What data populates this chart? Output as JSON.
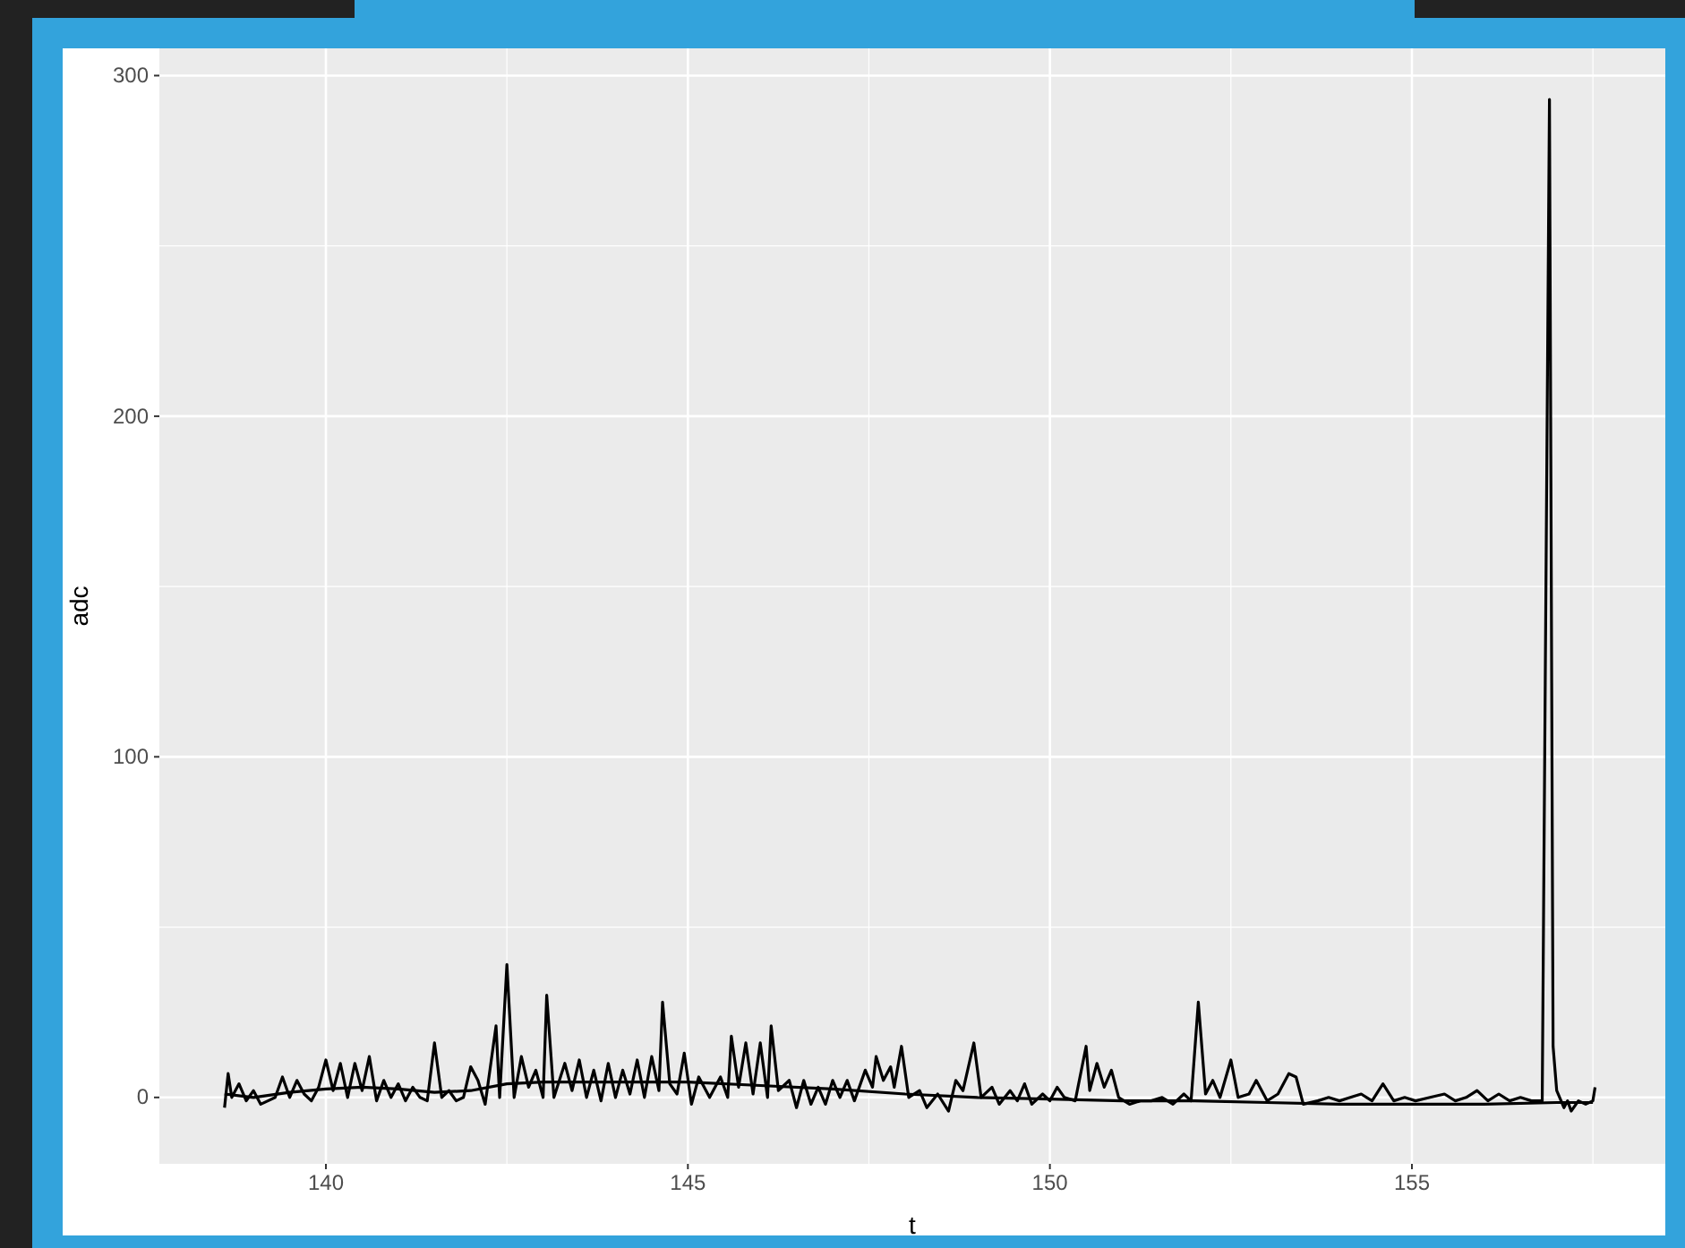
{
  "chart_data": {
    "type": "line",
    "xlabel": "t",
    "ylabel": "adc",
    "xlim": [
      137.7,
      158.5
    ],
    "ylim": [
      -19.5,
      308
    ],
    "xticks": [
      140,
      145,
      150,
      155
    ],
    "yticks": [
      0,
      100,
      200,
      300
    ],
    "grid": true,
    "line_style": "solid",
    "marker": "none",
    "series": [
      {
        "color": "#000000",
        "x": [
          138.6,
          138.65,
          138.7,
          138.8,
          138.9,
          139.0,
          139.1,
          139.2,
          139.3,
          139.4,
          139.5,
          139.6,
          139.7,
          139.8,
          139.9,
          140.0,
          140.1,
          140.2,
          140.3,
          140.4,
          140.5,
          140.6,
          140.7,
          140.8,
          140.9,
          141.0,
          141.1,
          141.2,
          141.3,
          141.4,
          141.5,
          141.6,
          141.7,
          141.8,
          141.9,
          142.0,
          142.1,
          142.2,
          142.35,
          142.4,
          142.5,
          142.6,
          142.7,
          142.8,
          142.9,
          143.0,
          143.05,
          143.15,
          143.3,
          143.4,
          143.5,
          143.6,
          143.7,
          143.8,
          143.9,
          144.0,
          144.1,
          144.2,
          144.3,
          144.4,
          144.5,
          144.6,
          144.65,
          144.75,
          144.85,
          144.95,
          145.05,
          145.15,
          145.3,
          145.45,
          145.55,
          145.6,
          145.7,
          145.8,
          145.9,
          146.0,
          146.1,
          146.15,
          146.25,
          146.4,
          146.5,
          146.6,
          146.7,
          146.8,
          146.9,
          147.0,
          147.1,
          147.2,
          147.3,
          147.45,
          147.55,
          147.6,
          147.7,
          147.8,
          147.85,
          147.95,
          148.05,
          148.2,
          148.3,
          148.45,
          148.6,
          148.7,
          148.8,
          148.95,
          149.05,
          149.2,
          149.3,
          149.45,
          149.55,
          149.65,
          149.75,
          149.9,
          150.0,
          150.1,
          150.2,
          150.35,
          150.5,
          150.55,
          150.65,
          150.75,
          150.85,
          150.95,
          151.1,
          151.25,
          151.4,
          151.55,
          151.7,
          151.85,
          151.95,
          152.05,
          152.15,
          152.25,
          152.35,
          152.5,
          152.6,
          152.75,
          152.85,
          153.0,
          153.15,
          153.3,
          153.4,
          153.5,
          153.7,
          153.85,
          154.0,
          154.15,
          154.3,
          154.45,
          154.6,
          154.75,
          154.9,
          155.05,
          155.25,
          155.45,
          155.6,
          155.75,
          155.9,
          156.05,
          156.2,
          156.35,
          156.5,
          156.65,
          156.8,
          156.9,
          156.95,
          157.0,
          157.1,
          157.15,
          157.2,
          157.3,
          157.4,
          157.5,
          157.53
        ],
        "values": [
          -3,
          7,
          0,
          4,
          -1,
          2,
          -2,
          -1,
          0,
          6,
          0,
          5,
          1,
          -1,
          3,
          11,
          2,
          10,
          0,
          10,
          2,
          12,
          -1,
          5,
          0,
          4,
          -1,
          3,
          0,
          -1,
          16,
          0,
          2,
          -1,
          0,
          9,
          5,
          -2,
          21,
          0,
          39,
          0,
          12,
          3,
          8,
          0,
          30,
          0,
          10,
          2,
          11,
          0,
          8,
          -1,
          10,
          0,
          8,
          1,
          11,
          0,
          12,
          2,
          28,
          4,
          1,
          13,
          -2,
          6,
          0,
          6,
          0,
          18,
          3,
          16,
          1,
          16,
          0,
          21,
          2,
          5,
          -3,
          5,
          -2,
          3,
          -2,
          5,
          0,
          5,
          -1,
          8,
          3,
          12,
          5,
          9,
          3,
          15,
          0,
          2,
          -3,
          1,
          -4,
          5,
          2,
          16,
          0,
          3,
          -2,
          2,
          -1,
          4,
          -2,
          1,
          -1,
          3,
          0,
          -1,
          15,
          2,
          10,
          3,
          8,
          0,
          -2,
          -1,
          -1,
          0,
          -2,
          1,
          -1,
          28,
          1,
          5,
          0,
          11,
          0,
          1,
          5,
          -1,
          1,
          7,
          6,
          -2,
          -1,
          0,
          -1,
          0,
          1,
          -1,
          4,
          -1,
          0,
          -1,
          0,
          1,
          -1,
          0,
          2,
          -1,
          1,
          -1,
          0,
          -1,
          -1,
          293,
          15,
          2,
          -3,
          -1,
          -4,
          -1,
          -2,
          -1,
          3
        ]
      },
      {
        "color": "#000000",
        "x": [
          138.6,
          139.0,
          139.5,
          140.0,
          140.5,
          141.0,
          141.5,
          142.0,
          142.5,
          143.0,
          144.0,
          145.0,
          146.0,
          147.0,
          148.0,
          149.0,
          150.0,
          151.0,
          152.0,
          153.0,
          154.0,
          155.0,
          156.0,
          157.0,
          157.5
        ],
        "values": [
          1,
          0,
          1.5,
          2.5,
          3,
          2.5,
          1.5,
          2,
          4,
          4.5,
          4.5,
          4.5,
          3.5,
          2.5,
          1,
          0,
          -0.5,
          -1,
          -1,
          -1.5,
          -2,
          -2,
          -2,
          -1.5,
          -1.5
        ]
      }
    ]
  }
}
